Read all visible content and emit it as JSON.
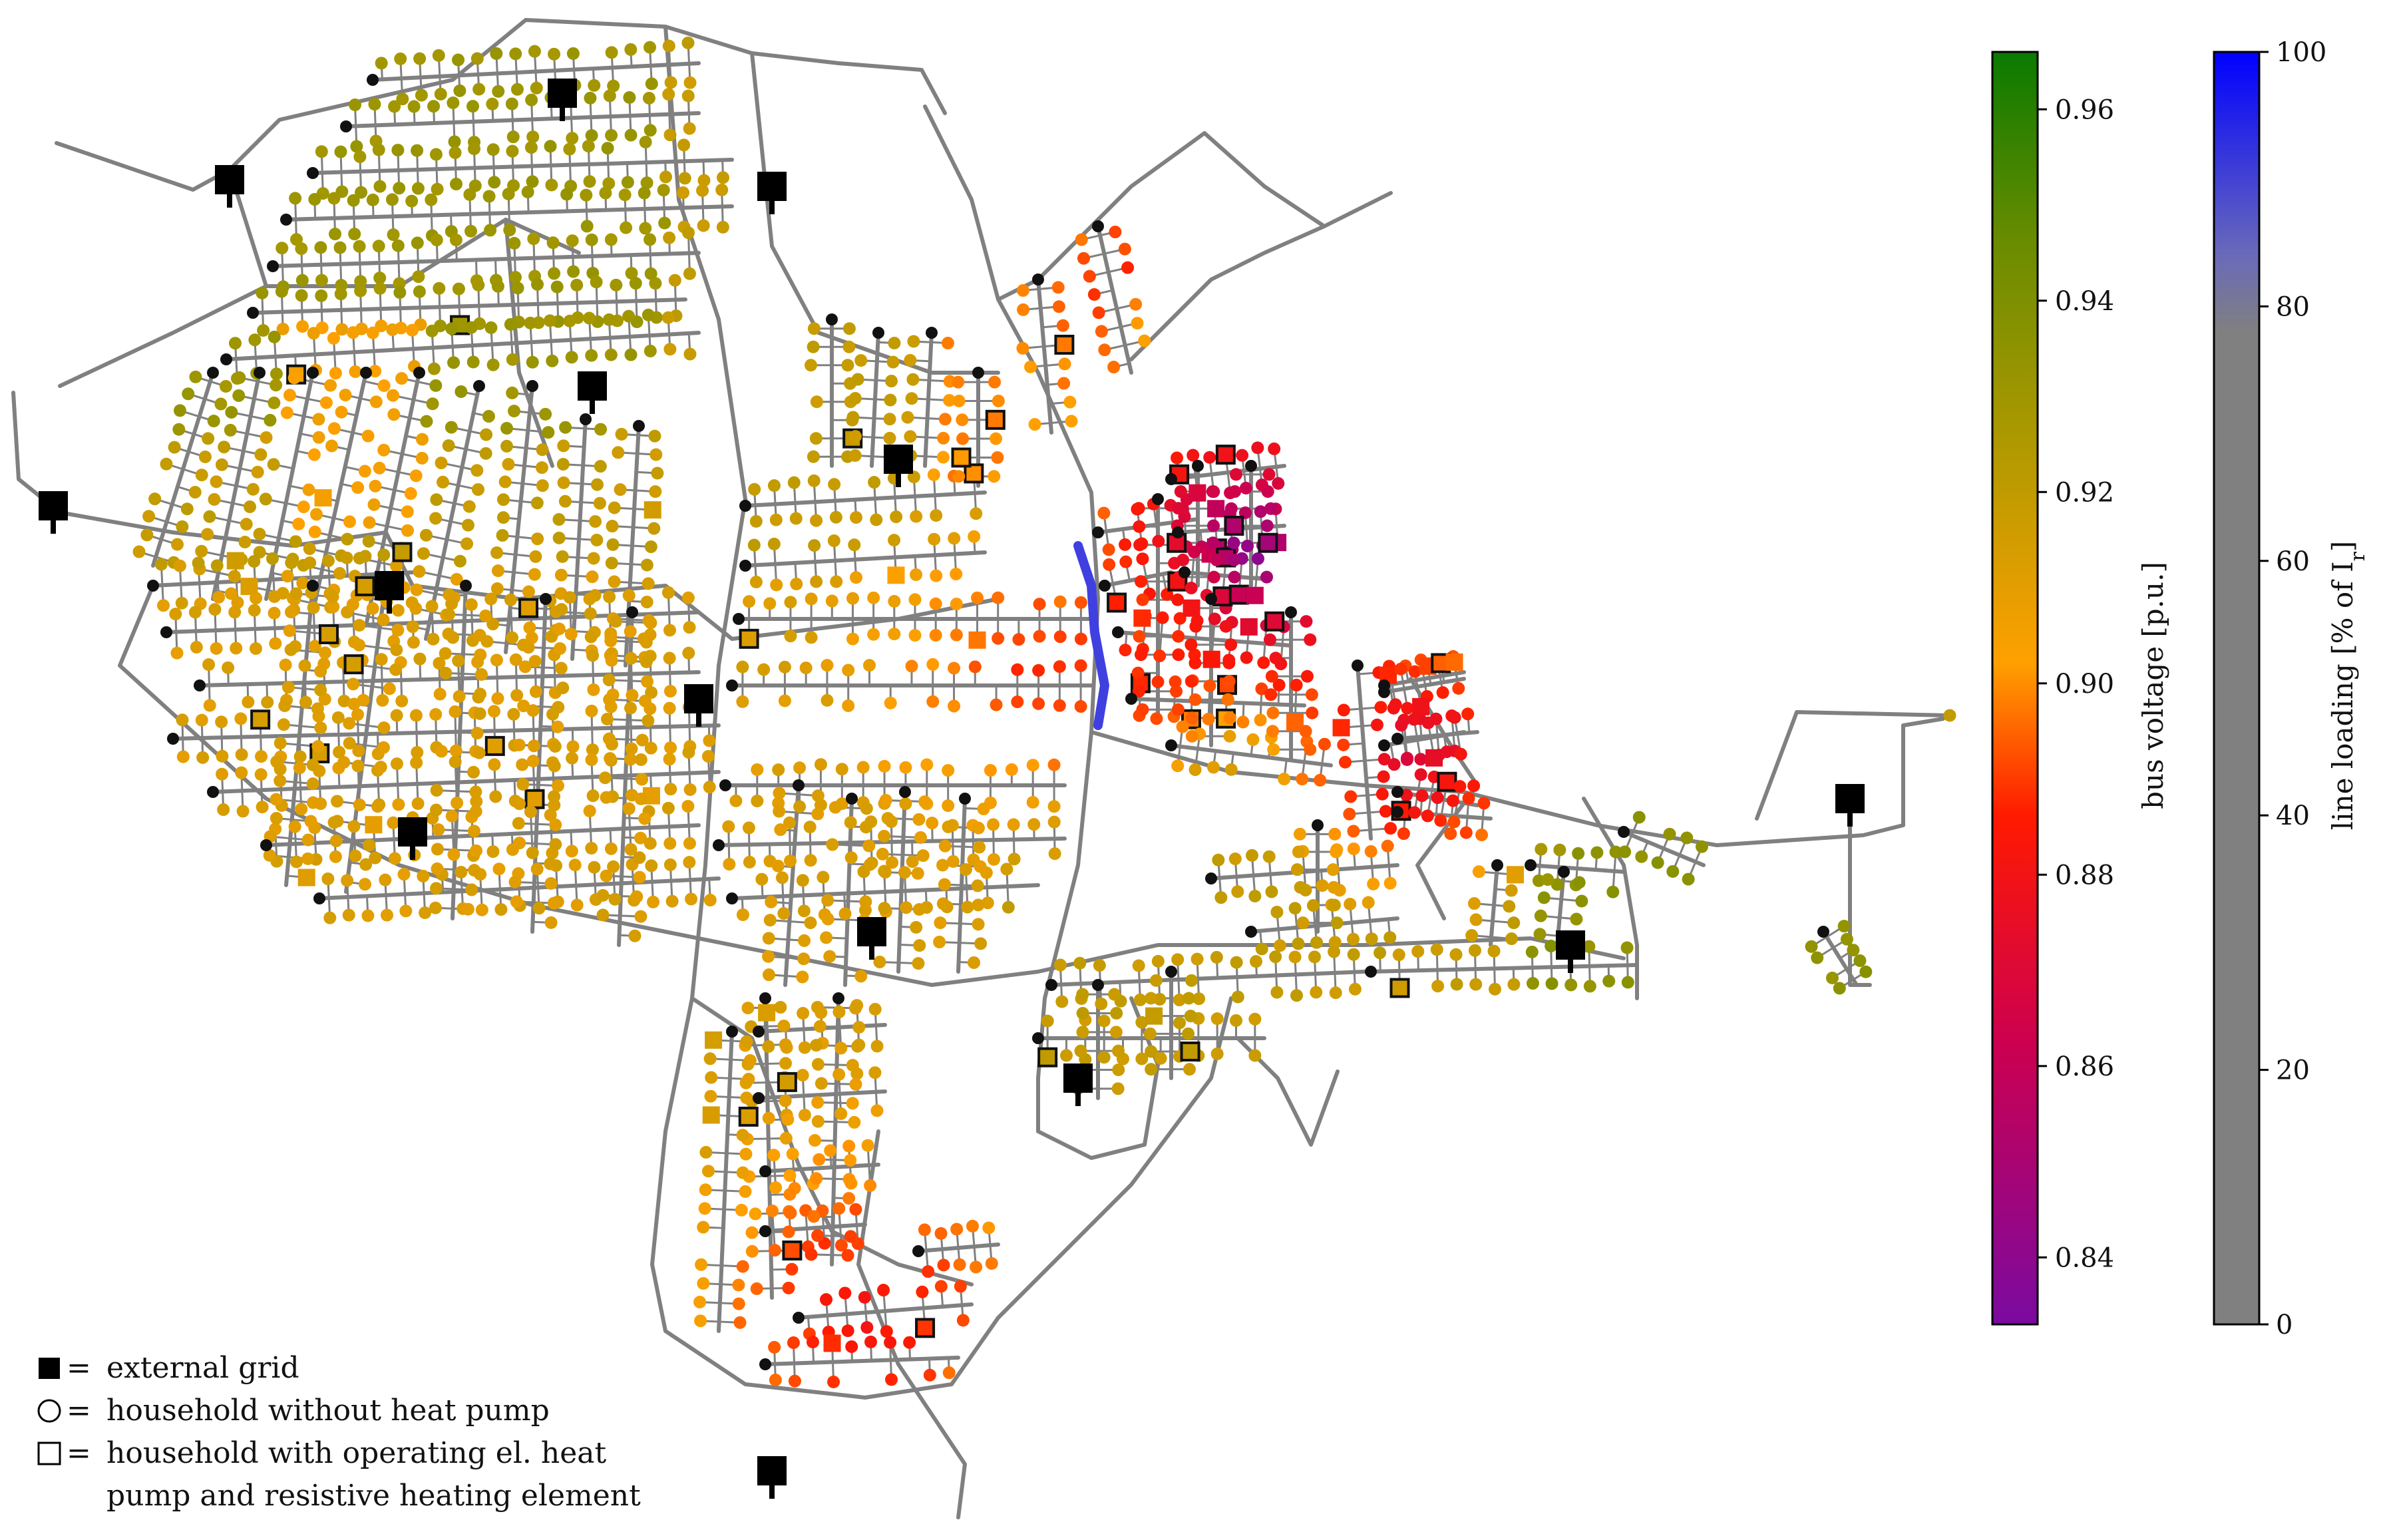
{
  "legend": {
    "external_grid": "external grid",
    "household_no_hp": "household without heat pump",
    "household_hp_line1": "household with operating el. heat",
    "household_hp_line2": "pump and resistive heating element",
    "equals": "="
  },
  "colorbar_voltage": {
    "label": "bus voltage [p.u.]",
    "ticks": [
      "0.96",
      "0.94",
      "0.92",
      "0.90",
      "0.88",
      "0.86",
      "0.84"
    ],
    "min": 0.833,
    "max": 0.966,
    "stops": [
      "#7a0aa0",
      "#cc0050",
      "#ff1a00",
      "#ffa000",
      "#b49a00",
      "#228b00",
      "#0a7a00"
    ]
  },
  "colorbar_loading": {
    "label": "line loading [% of I",
    "label_sub": "r",
    "label_end": "]",
    "ticks": [
      "100",
      "80",
      "60",
      "40",
      "20",
      "0"
    ],
    "min": 0,
    "max": 100,
    "colors": {
      "base": "#808080",
      "high": "#0000ff"
    }
  },
  "colors": {
    "line": "#808080",
    "loaded_line": "#4040e0",
    "junction": "#111111",
    "grid": "#000000"
  }
}
